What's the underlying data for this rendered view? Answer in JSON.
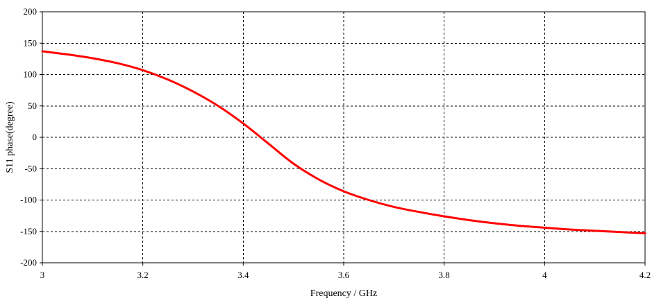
{
  "chart_data": {
    "type": "line",
    "title": "",
    "xlabel": "Frequency / GHz",
    "ylabel": "S11 phase(degree)",
    "xlim": [
      3,
      4.2
    ],
    "ylim": [
      -200,
      200
    ],
    "grid": true,
    "grid_style": "dashed",
    "x_ticks": [
      3,
      3.2,
      3.4,
      3.6,
      3.8,
      4,
      4.2
    ],
    "x_tick_labels": [
      "3",
      "3.2",
      "3.4",
      "3.6",
      "3.8",
      "4",
      "4.2"
    ],
    "y_ticks": [
      200,
      150,
      100,
      50,
      0,
      -50,
      -100,
      -150,
      -200
    ],
    "y_tick_labels": [
      "200",
      "150",
      "100",
      "50",
      "0",
      "-50",
      "-100",
      "-150",
      "-200"
    ],
    "colors": {
      "line": "#ff0000",
      "grid": "#000000",
      "axis": "#000000"
    },
    "series": [
      {
        "x": [
          3.0,
          3.05,
          3.1,
          3.15,
          3.2,
          3.25,
          3.3,
          3.35,
          3.4,
          3.45,
          3.5,
          3.55,
          3.6,
          3.65,
          3.7,
          3.75,
          3.8,
          3.85,
          3.9,
          3.95,
          4.0,
          4.05,
          4.1,
          4.15,
          4.2
        ],
        "y": [
          137,
          132,
          126,
          118,
          107,
          92,
          73,
          50,
          22,
          -10,
          -42,
          -67,
          -86,
          -100,
          -111,
          -119,
          -126,
          -132,
          -137,
          -141,
          -144,
          -147,
          -149,
          -151,
          -153
        ]
      }
    ]
  }
}
